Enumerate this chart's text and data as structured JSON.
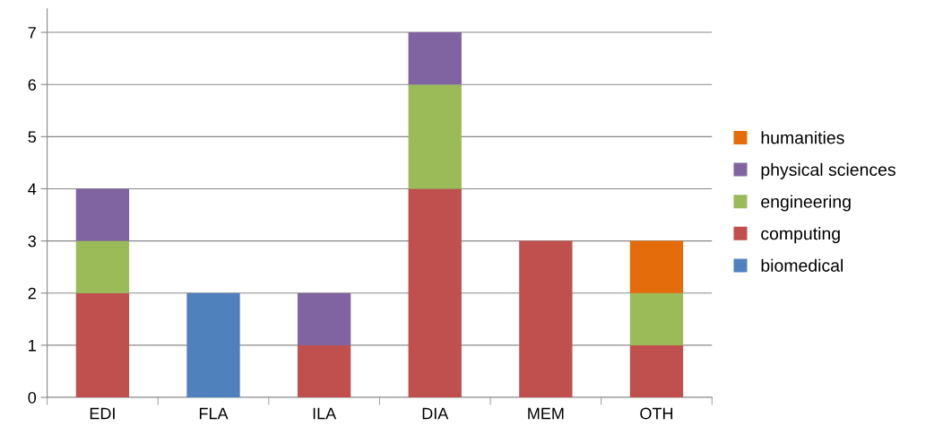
{
  "chart_data": {
    "type": "bar",
    "stacked": true,
    "categories": [
      "EDI",
      "FLA",
      "ILA",
      "DIA",
      "MEM",
      "OTH"
    ],
    "series": [
      {
        "name": "biomedical",
        "color": "#4f81bd",
        "values": [
          0,
          2,
          0,
          0,
          0,
          0
        ]
      },
      {
        "name": "computing",
        "color": "#c0504d",
        "values": [
          2,
          0,
          1,
          4,
          3,
          1
        ]
      },
      {
        "name": "engineering",
        "color": "#9bbb59",
        "values": [
          1,
          0,
          0,
          2,
          0,
          1
        ]
      },
      {
        "name": "physical sciences",
        "color": "#8064a2",
        "values": [
          1,
          0,
          1,
          1,
          0,
          0
        ]
      },
      {
        "name": "humanities",
        "color": "#e46c0a",
        "values": [
          0,
          0,
          0,
          0,
          0,
          1
        ]
      }
    ],
    "ylim": [
      0,
      7.45
    ],
    "yticks": [
      0,
      1,
      2,
      3,
      4,
      5,
      6,
      7
    ],
    "grid": "y",
    "legend": "right"
  }
}
